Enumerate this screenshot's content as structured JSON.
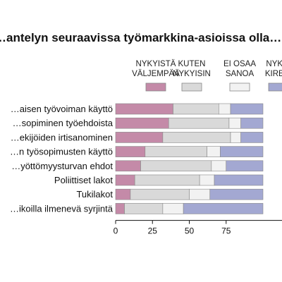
{
  "chart_data": {
    "type": "bar",
    "orientation": "horizontal",
    "stacked": true,
    "title": "…antelyn seuraavissa työmarkkina-asioissa olla…",
    "categories": [
      "…aisen työvoiman käyttö",
      "…sopiminen työehdoista",
      "…ekijöiden irtisanominen",
      "…n työsopimusten käyttö",
      "…yöttömyysturvan ehdot",
      "Poliittiset lakot",
      "Tukilakot",
      "…ikoilla ilmenevä syrjintä"
    ],
    "series": [
      {
        "name": "NYKYISTÄ VÄLJEMPÄÄ",
        "name_lines": [
          "NYKYISTÄ",
          "VÄLJEMPÄÄ"
        ],
        "color": "#c48aa8",
        "values": [
          39,
          36,
          32,
          20,
          17,
          13,
          10,
          6
        ]
      },
      {
        "name": "KUTEN NYKYISIN",
        "name_lines": [
          "KUTEN",
          "NYKYISIN"
        ],
        "color": "#d9d9d9",
        "values": [
          31,
          41,
          46,
          42,
          48,
          44,
          40,
          26
        ]
      },
      {
        "name": "EI OSAA SANOA",
        "name_lines": [
          "EI OSAA",
          "SANOA"
        ],
        "color": "#f2f2f2",
        "values": [
          8,
          8,
          7,
          9,
          10,
          10,
          14,
          14
        ]
      },
      {
        "name": "NYKYISTÄ KIREÄMPÄÄ",
        "name_lines": [
          "NYK…",
          "KIRE…"
        ],
        "color": "#a3a8d2",
        "values": [
          22,
          15,
          15,
          29,
          25,
          33,
          36,
          54
        ]
      }
    ],
    "xlim": [
      0,
      100
    ],
    "xticks": [
      0,
      25,
      50,
      75
    ],
    "legend_position": "top",
    "grid": false
  }
}
